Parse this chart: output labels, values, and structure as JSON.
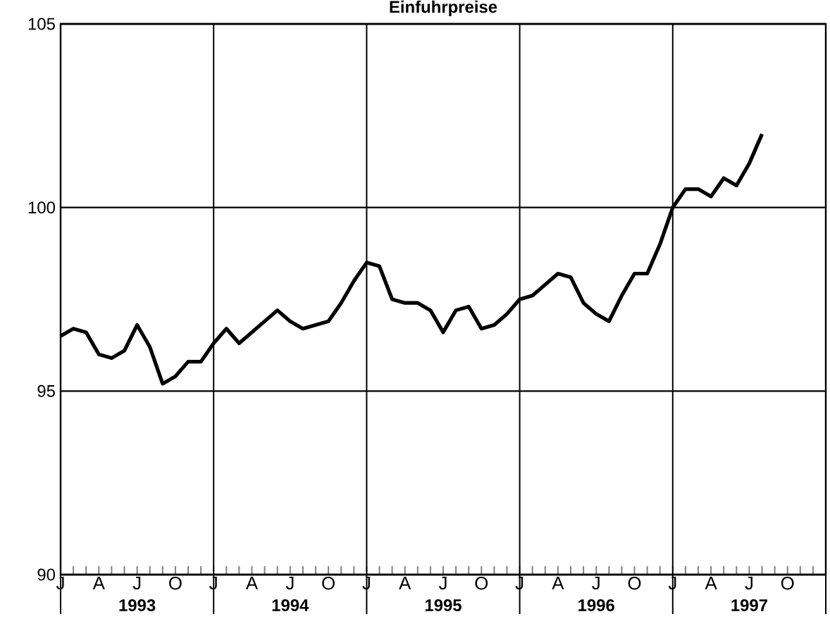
{
  "chart_data": {
    "type": "line",
    "title": "Einfuhrpreise",
    "categories": [
      "J",
      null,
      null,
      "A",
      null,
      null,
      "J",
      null,
      null,
      "O",
      null,
      null,
      "J",
      null,
      null,
      "A",
      null,
      null,
      "J",
      null,
      null,
      "O",
      null,
      null,
      "J",
      null,
      null,
      "A",
      null,
      null,
      "J",
      null,
      null,
      "O",
      null,
      null,
      "J",
      null,
      null,
      "A",
      null,
      null,
      "J",
      null,
      null,
      "O",
      null,
      null,
      "J",
      null,
      null,
      "A",
      null,
      null,
      "J",
      null,
      null,
      "O",
      null,
      null
    ],
    "series": [
      {
        "color": "#000000",
        "values": [
          96.5,
          96.7,
          96.6,
          96.0,
          95.9,
          96.1,
          96.8,
          96.2,
          95.2,
          95.4,
          95.8,
          95.8,
          96.3,
          96.7,
          96.3,
          96.6,
          96.9,
          97.2,
          96.9,
          96.7,
          96.8,
          96.9,
          97.4,
          98.0,
          98.5,
          98.4,
          97.5,
          97.4,
          97.4,
          97.2,
          96.6,
          97.2,
          97.3,
          96.7,
          96.8,
          97.1,
          97.5,
          97.6,
          97.9,
          98.2,
          98.1,
          97.4,
          97.1,
          96.9,
          97.6,
          98.2,
          98.2,
          99.0,
          100.0,
          100.5,
          100.5,
          100.3,
          100.8,
          100.6,
          101.2,
          102.0,
          null,
          null,
          null,
          null
        ]
      }
    ],
    "ylim": [
      90,
      105
    ],
    "yticks": [
      90,
      95,
      100,
      105
    ],
    "annotations": [
      "1993",
      "1994",
      "1995",
      "1996",
      "1997"
    ],
    "grid": true,
    "line_style": "solid",
    "marker": "none"
  }
}
